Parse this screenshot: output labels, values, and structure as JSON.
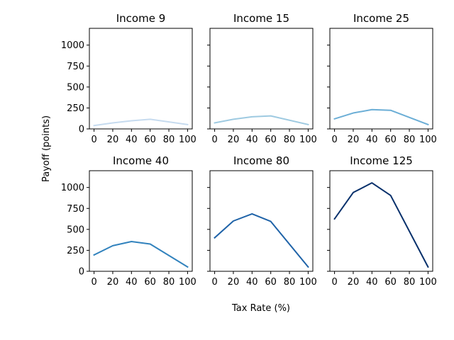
{
  "chart_data": {
    "type": "line",
    "layout": "2x3 small multiples",
    "shared_y": true,
    "xlabel": "Tax Rate (%)",
    "ylabel": "Payoff (points)",
    "x": [
      0,
      20,
      40,
      60,
      100
    ],
    "xticks": [
      0,
      20,
      40,
      60,
      80,
      100
    ],
    "xlim": [
      -5,
      105
    ],
    "yticks": [
      0,
      250,
      500,
      750,
      1000
    ],
    "ylim": [
      0,
      1200
    ],
    "grid": false,
    "panels": [
      {
        "title": "Income 9",
        "color": "#c6dbef",
        "values": [
          40,
          72,
          97,
          115,
          52
        ]
      },
      {
        "title": "Income 15",
        "color": "#9ecae1",
        "values": [
          72,
          115,
          145,
          155,
          52
        ]
      },
      {
        "title": "Income 25",
        "color": "#6baed6",
        "values": [
          120,
          190,
          230,
          222,
          52
        ]
      },
      {
        "title": "Income 40",
        "color": "#3182bd",
        "values": [
          195,
          305,
          355,
          325,
          52
        ]
      },
      {
        "title": "Income 80",
        "color": "#1f63a8",
        "values": [
          400,
          600,
          685,
          595,
          52
        ]
      },
      {
        "title": "Income 125",
        "color": "#08306b",
        "values": [
          625,
          940,
          1055,
          905,
          52
        ]
      }
    ]
  }
}
